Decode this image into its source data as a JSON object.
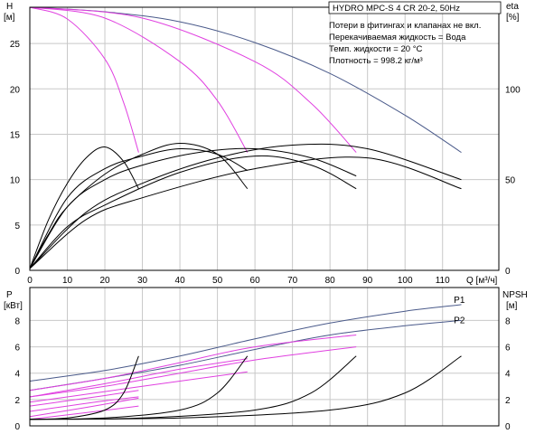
{
  "title": "HYDRO MPC-S 4 CR 20-2, 50Hz",
  "info_lines": [
    "Потери в фитингах и клапанах не вкл.",
    "Перекачиваемая жидкость = Вода",
    "Темп. жидкости = 20 °C",
    "Плотность = 998.2 кг/м³"
  ],
  "colors": {
    "system_curve": "#4a5a8a",
    "pump_curve": "#e040e0",
    "efficiency_curve": "#000000",
    "grid": "#c8c8c8"
  },
  "chart_data": [
    {
      "id": "head",
      "type": "line",
      "ylabel_line1": "H",
      "ylabel_line2": "[м]",
      "y2label_line1": "eta",
      "y2label_line2": "[%]",
      "xlabel": "Q [м³/ч]",
      "xlim": [
        0,
        125
      ],
      "ylim": [
        0,
        29
      ],
      "y2lim": [
        0,
        145
      ],
      "x_ticks": [
        0,
        10,
        20,
        30,
        40,
        50,
        60,
        70,
        80,
        90,
        100,
        110
      ],
      "y_ticks": [
        0,
        5,
        10,
        15,
        20,
        25
      ],
      "y2_ticks": [
        0,
        50,
        100
      ],
      "grid": true,
      "series": [
        {
          "kind": "head",
          "color": "#4a5a8a",
          "x": [
            0,
            20,
            40,
            60,
            80,
            100,
            115
          ],
          "y": [
            29,
            28.5,
            27.4,
            25.1,
            21.7,
            17.1,
            13
          ]
        },
        {
          "kind": "head",
          "color": "#e040e0",
          "x": [
            0,
            10,
            20,
            25,
            29
          ],
          "y": [
            29,
            27.7,
            23.3,
            18.5,
            13
          ]
        },
        {
          "kind": "head",
          "color": "#e040e0",
          "x": [
            0,
            20,
            40,
            50,
            58
          ],
          "y": [
            29,
            27.8,
            23,
            18.7,
            13
          ]
        },
        {
          "kind": "head",
          "color": "#e040e0",
          "x": [
            0,
            30,
            60,
            75,
            87
          ],
          "y": [
            29,
            27.8,
            23,
            18.4,
            13
          ]
        },
        {
          "kind": "eta",
          "color": "#000000",
          "x": [
            0,
            5,
            10,
            15,
            20,
            25,
            29
          ],
          "y": [
            1,
            28,
            48,
            62,
            68,
            60,
            45
          ]
        },
        {
          "kind": "eta",
          "color": "#000000",
          "x": [
            0,
            5,
            10,
            20,
            30,
            40,
            50,
            58
          ],
          "y": [
            1,
            20,
            35,
            53,
            64,
            70,
            64,
            45
          ]
        },
        {
          "kind": "eta",
          "color": "#000000",
          "x": [
            0,
            10,
            20,
            40,
            60,
            75,
            87
          ],
          "y": [
            1,
            24,
            36,
            54,
            63,
            58,
            45
          ]
        },
        {
          "kind": "eta",
          "color": "#000000",
          "x": [
            0,
            15,
            30,
            60,
            90,
            115
          ],
          "y": [
            1,
            28,
            40,
            56,
            62,
            45
          ]
        },
        {
          "kind": "eta",
          "color": "#000000",
          "x": [
            0,
            15,
            30,
            50,
            70,
            90,
            115
          ],
          "y": [
            1,
            32,
            48,
            62,
            69,
            67,
            50
          ]
        },
        {
          "kind": "eta",
          "color": "#000000",
          "x": [
            0,
            10,
            20,
            30,
            45,
            60,
            75,
            87
          ],
          "y": [
            1,
            35,
            50,
            58,
            65,
            67,
            62,
            52
          ]
        },
        {
          "kind": "eta",
          "color": "#000000",
          "x": [
            0,
            10,
            20,
            30,
            40,
            50,
            58
          ],
          "y": [
            1,
            40,
            56,
            63,
            67,
            64,
            55
          ]
        }
      ]
    },
    {
      "id": "power",
      "type": "line",
      "ylabel_line1": "P",
      "ylabel_line2": "[кВт]",
      "y2label_line1": "NPSH",
      "y2label_line2": "[м]",
      "xlim": [
        0,
        125
      ],
      "ylim": [
        0,
        10.5
      ],
      "y2lim": [
        0,
        10.5
      ],
      "y_ticks": [
        0,
        2,
        4,
        6,
        8
      ],
      "y2_ticks": [
        0,
        2,
        4,
        6,
        8
      ],
      "grid": true,
      "labels": [
        {
          "text": "P1",
          "x": 113,
          "y": 9.35
        },
        {
          "text": "P2",
          "x": 113,
          "y": 7.8
        }
      ],
      "series": [
        {
          "kind": "P1",
          "color": "#4a5a8a",
          "x": [
            0,
            20,
            40,
            60,
            80,
            100,
            115
          ],
          "y": [
            3.4,
            4.2,
            5.3,
            6.6,
            7.8,
            8.7,
            9.2
          ]
        },
        {
          "kind": "P2",
          "color": "#4a5a8a",
          "x": [
            0,
            20,
            40,
            60,
            80,
            100,
            115
          ],
          "y": [
            2.7,
            3.6,
            4.6,
            5.8,
            6.9,
            7.6,
            8.0
          ]
        },
        {
          "kind": "pump_P1",
          "color": "#e040e0",
          "x": [
            0,
            20,
            40,
            60,
            87
          ],
          "y": [
            2.7,
            3.6,
            4.8,
            6.0,
            6.9
          ]
        },
        {
          "kind": "pump_P2",
          "color": "#e040e0",
          "x": [
            0,
            20,
            40,
            60,
            87
          ],
          "y": [
            2.2,
            3.0,
            4.0,
            5.0,
            6.0
          ]
        },
        {
          "kind": "pump_P1",
          "color": "#e040e0",
          "x": [
            0,
            20,
            40,
            58
          ],
          "y": [
            2.2,
            3.2,
            4.3,
            5.1
          ]
        },
        {
          "kind": "pump_P2",
          "color": "#e040e0",
          "x": [
            0,
            20,
            40,
            58
          ],
          "y": [
            1.8,
            2.6,
            3.4,
            4.1
          ]
        },
        {
          "kind": "pump_P1",
          "color": "#e040e0",
          "x": [
            0,
            10,
            20,
            29
          ],
          "y": [
            1.5,
            1.9,
            2.3,
            2.7
          ]
        },
        {
          "kind": "pump_P2",
          "color": "#e040e0",
          "x": [
            0,
            10,
            20,
            29
          ],
          "y": [
            1.1,
            1.5,
            1.9,
            2.2
          ]
        },
        {
          "kind": "pump_P1",
          "color": "#e040e0",
          "x": [
            0,
            15,
            29
          ],
          "y": [
            0.7,
            1.4,
            2.1
          ]
        },
        {
          "kind": "pump_P2",
          "color": "#e040e0",
          "x": [
            0,
            15,
            29
          ],
          "y": [
            0.5,
            1.0,
            1.5
          ]
        },
        {
          "kind": "NPSH",
          "color": "#000000",
          "x": [
            0,
            10,
            20,
            25,
            29
          ],
          "y": [
            0.5,
            0.6,
            1.2,
            2.5,
            5.3
          ]
        },
        {
          "kind": "NPSH",
          "color": "#000000",
          "x": [
            0,
            20,
            40,
            50,
            58
          ],
          "y": [
            0.5,
            0.6,
            1.2,
            2.5,
            5.3
          ]
        },
        {
          "kind": "NPSH",
          "color": "#000000",
          "x": [
            0,
            30,
            60,
            75,
            87
          ],
          "y": [
            0.5,
            0.6,
            1.2,
            2.5,
            5.3
          ]
        },
        {
          "kind": "NPSH",
          "color": "#000000",
          "x": [
            0,
            40,
            80,
            100,
            115
          ],
          "y": [
            0.5,
            0.6,
            1.2,
            2.5,
            5.3
          ]
        }
      ]
    }
  ]
}
